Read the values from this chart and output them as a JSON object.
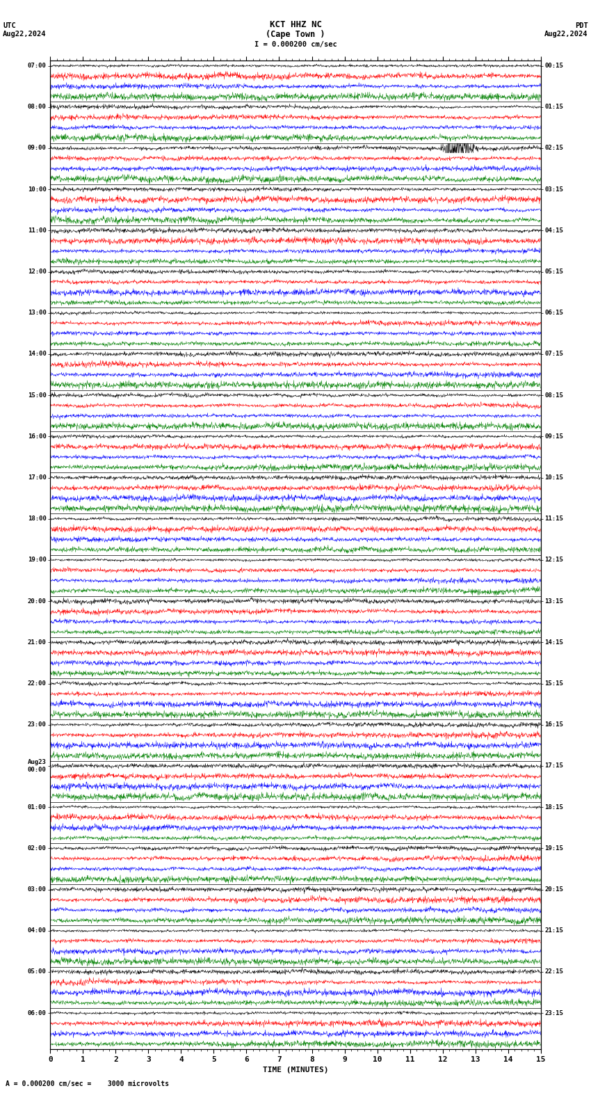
{
  "title_line1": "KCT HHZ NC",
  "title_line2": "(Cape Town )",
  "title_scale": "I = 0.000200 cm/sec",
  "label_left": "UTC",
  "label_right": "PDT",
  "date_left": "Aug22,2024",
  "date_right": "Aug22,2024",
  "xlabel": "TIME (MINUTES)",
  "bottom_label": "= 0.000200 cm/sec =    3000 microvolts",
  "xmin": 0,
  "xmax": 15,
  "xticks": [
    0,
    1,
    2,
    3,
    4,
    5,
    6,
    7,
    8,
    9,
    10,
    11,
    12,
    13,
    14,
    15
  ],
  "utc_times": [
    "07:00",
    "08:00",
    "09:00",
    "10:00",
    "11:00",
    "12:00",
    "13:00",
    "14:00",
    "15:00",
    "16:00",
    "17:00",
    "18:00",
    "19:00",
    "20:00",
    "21:00",
    "22:00",
    "23:00",
    "Aug23\n00:00",
    "01:00",
    "02:00",
    "03:00",
    "04:00",
    "05:00",
    "06:00"
  ],
  "pdt_times": [
    "00:15",
    "01:15",
    "02:15",
    "03:15",
    "04:15",
    "05:15",
    "06:15",
    "07:15",
    "08:15",
    "09:15",
    "10:15",
    "11:15",
    "12:15",
    "13:15",
    "14:15",
    "15:15",
    "16:15",
    "17:15",
    "18:15",
    "19:15",
    "20:15",
    "21:15",
    "22:15",
    "23:15"
  ],
  "n_rows": 24,
  "n_traces": 4,
  "trace_colors": [
    "black",
    "red",
    "blue",
    "green"
  ],
  "bg_color": "white",
  "fig_width": 8.5,
  "fig_height": 15.84,
  "dpi": 100,
  "noise_scale": [
    0.28,
    0.38,
    0.38,
    0.42
  ],
  "seed": 42,
  "event_hour": 8,
  "event_minute": 12.5
}
